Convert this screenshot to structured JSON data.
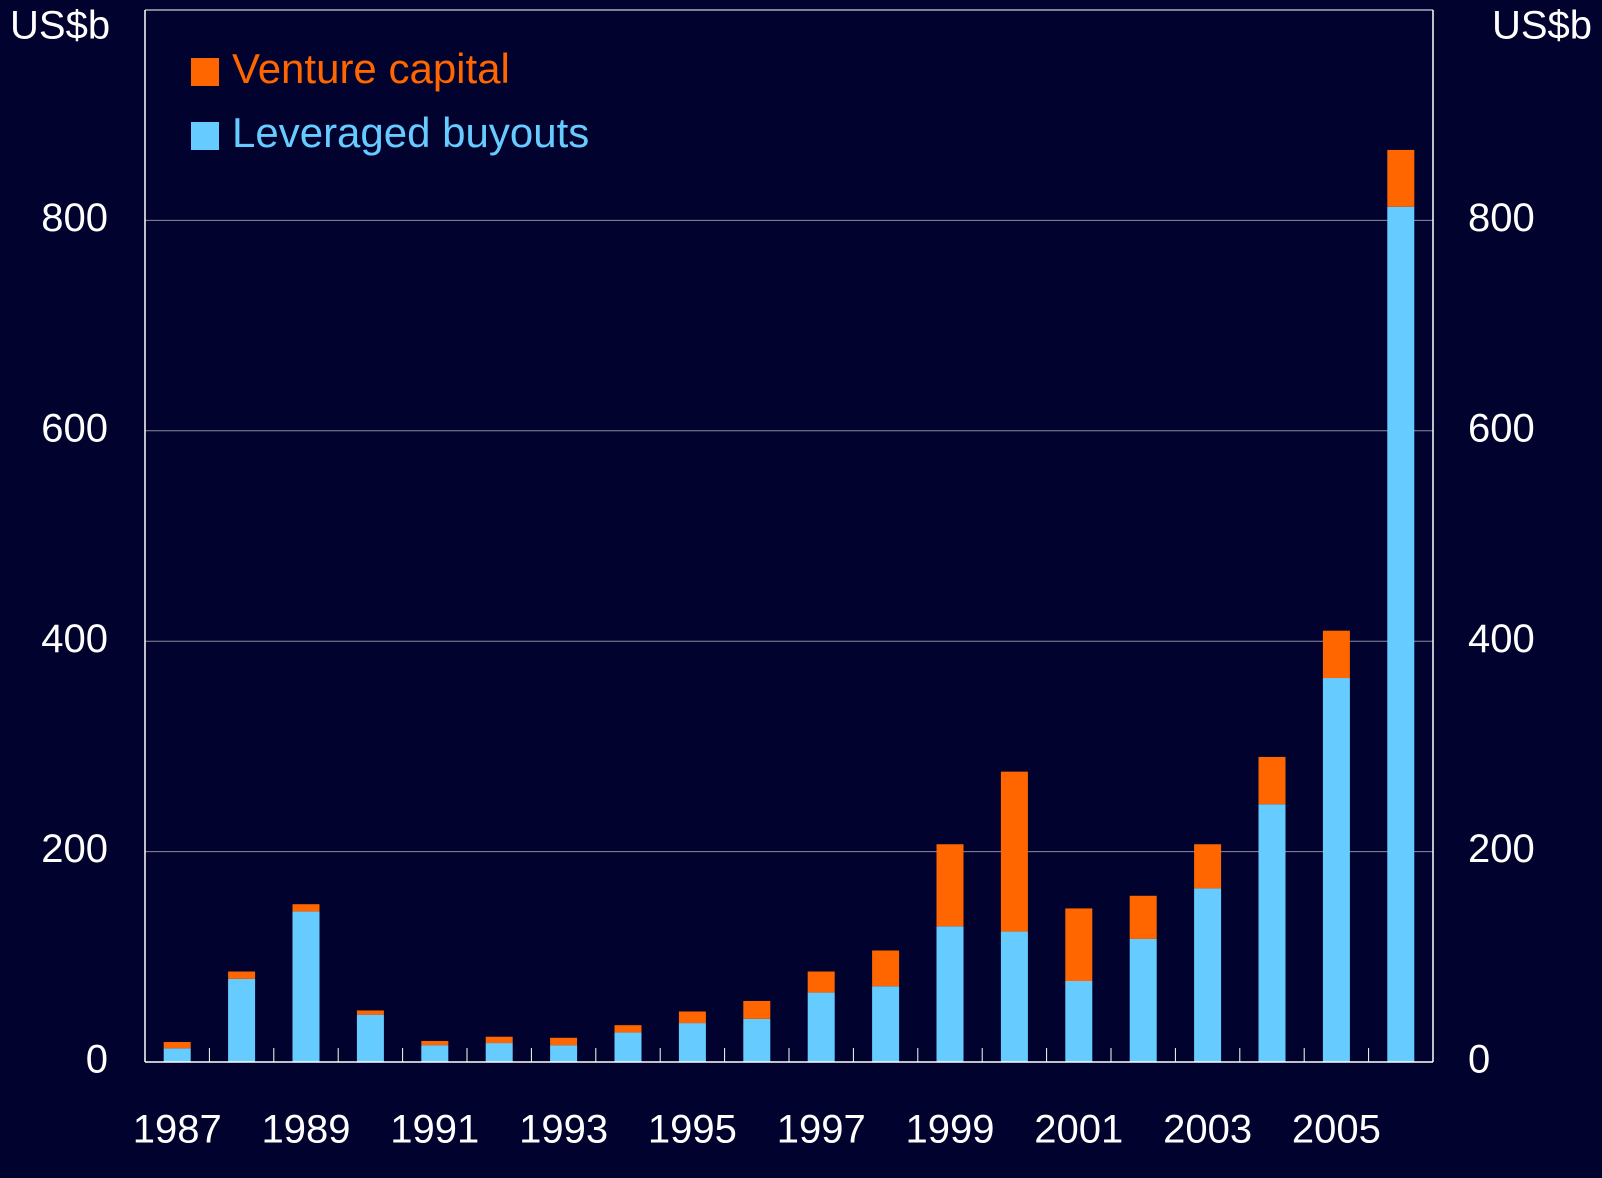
{
  "chart_data": {
    "type": "stacked_bar",
    "ylabel": "US$b",
    "y2label": "US$b",
    "categories": [
      "1987",
      null,
      "1989",
      null,
      "1991",
      null,
      "1993",
      null,
      "1995",
      null,
      "1997",
      null,
      "1999",
      null,
      "2001",
      null,
      "2003",
      null,
      "2005",
      null
    ],
    "series": [
      {
        "name": "Leveraged buyouts",
        "color": "#66ccff",
        "values": [
          13,
          79,
          143,
          45,
          16,
          18,
          16,
          28,
          37,
          41,
          66,
          72,
          129,
          124,
          77,
          117,
          165,
          245,
          365,
          813
        ]
      },
      {
        "name": "Venture capital",
        "color": "#ff6600",
        "values": [
          6,
          7,
          7,
          4,
          4,
          6,
          7,
          7,
          11,
          17,
          20,
          34,
          78,
          152,
          69,
          41,
          42,
          45,
          45,
          54
        ]
      }
    ],
    "ylim": [
      0,
      1000
    ],
    "yticks": [
      0,
      200,
      400,
      600,
      800
    ],
    "y2lim": [
      0,
      1000
    ],
    "y2ticks": [
      0,
      200,
      400,
      600,
      800
    ],
    "grid": true,
    "legend": "upper left"
  }
}
